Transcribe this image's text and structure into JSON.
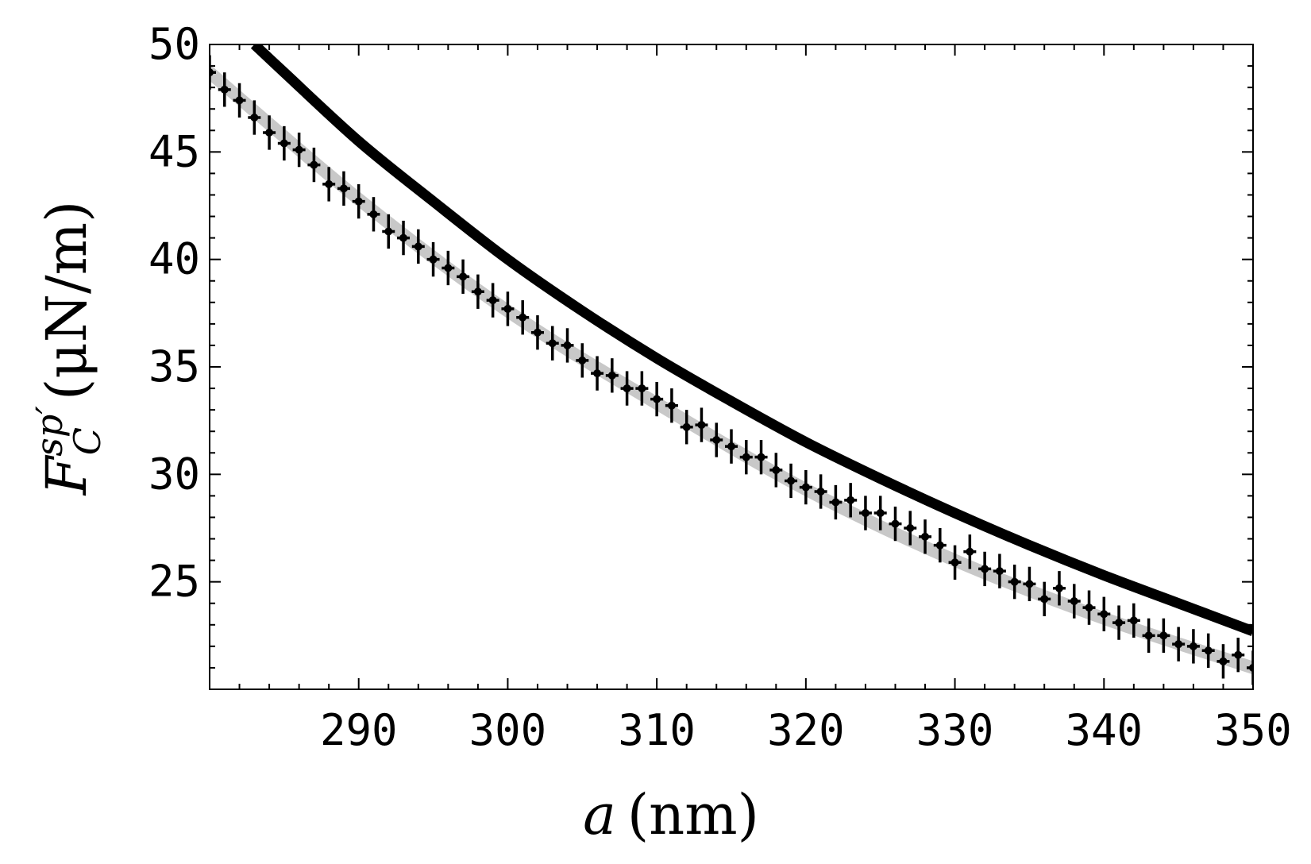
{
  "chart_data": {
    "type": "line",
    "title": "",
    "xlabel": {
      "var": "a",
      "unit": "(nm)"
    },
    "ylabel": {
      "var": "F",
      "sub": "C",
      "sup": "sp′",
      "unit": "(μN/m)"
    },
    "xlim": [
      280,
      350
    ],
    "ylim": [
      20,
      50
    ],
    "x_ticks": [
      290,
      300,
      310,
      320,
      330,
      340,
      350
    ],
    "y_ticks": [
      25,
      30,
      35,
      40,
      45,
      50
    ],
    "x_minor_step": 2,
    "y_minor_step": 1,
    "grid": false,
    "legend": "none",
    "series": [
      {
        "kind": "theory-curve",
        "color": "#000000",
        "x": [
          283,
          285,
          290,
          295,
          300,
          305,
          310,
          315,
          320,
          325,
          330,
          335,
          340,
          345,
          350
        ],
        "y": [
          50.0,
          48.7,
          45.5,
          42.7,
          40.0,
          37.6,
          35.4,
          33.4,
          31.5,
          29.8,
          28.2,
          26.7,
          25.3,
          24.0,
          22.7
        ]
      },
      {
        "kind": "fit-band",
        "color": "#c8c8c8",
        "x": [
          280,
          290,
          300,
          310,
          320,
          330,
          340,
          350
        ],
        "y": [
          48.7,
          42.8,
          37.6,
          33.3,
          29.3,
          26.0,
          23.3,
          21.0
        ]
      },
      {
        "kind": "data-points",
        "color": "#000000",
        "x": [
          280,
          281,
          282,
          283,
          284,
          285,
          286,
          287,
          288,
          289,
          290,
          291,
          292,
          293,
          294,
          295,
          296,
          297,
          298,
          299,
          300,
          301,
          302,
          303,
          304,
          305,
          306,
          307,
          308,
          309,
          310,
          311,
          312,
          313,
          314,
          315,
          316,
          317,
          318,
          319,
          320,
          321,
          322,
          323,
          324,
          325,
          326,
          327,
          328,
          329,
          330,
          331,
          332,
          333,
          334,
          335,
          336,
          337,
          338,
          339,
          340,
          341,
          342,
          343,
          344,
          345,
          346,
          347,
          348,
          349,
          350
        ],
        "y": [
          48.7,
          47.9,
          47.4,
          46.6,
          45.9,
          45.4,
          45.1,
          44.4,
          43.5,
          43.3,
          42.7,
          42.1,
          41.3,
          41.0,
          40.6,
          40.0,
          39.6,
          39.2,
          38.5,
          38.1,
          37.7,
          37.3,
          36.6,
          36.1,
          36.0,
          35.3,
          34.7,
          34.6,
          34.0,
          34.0,
          33.5,
          33.2,
          32.2,
          32.3,
          31.6,
          31.3,
          30.8,
          30.8,
          30.2,
          29.7,
          29.4,
          29.2,
          28.7,
          28.8,
          28.2,
          28.2,
          27.7,
          27.5,
          27.1,
          26.7,
          25.9,
          26.4,
          25.6,
          25.5,
          25.0,
          24.9,
          24.2,
          24.7,
          24.1,
          23.8,
          23.5,
          23.1,
          23.2,
          22.5,
          22.5,
          22.1,
          22.0,
          21.8,
          21.3,
          21.6,
          21.0
        ],
        "yerr": 0.8
      }
    ]
  }
}
